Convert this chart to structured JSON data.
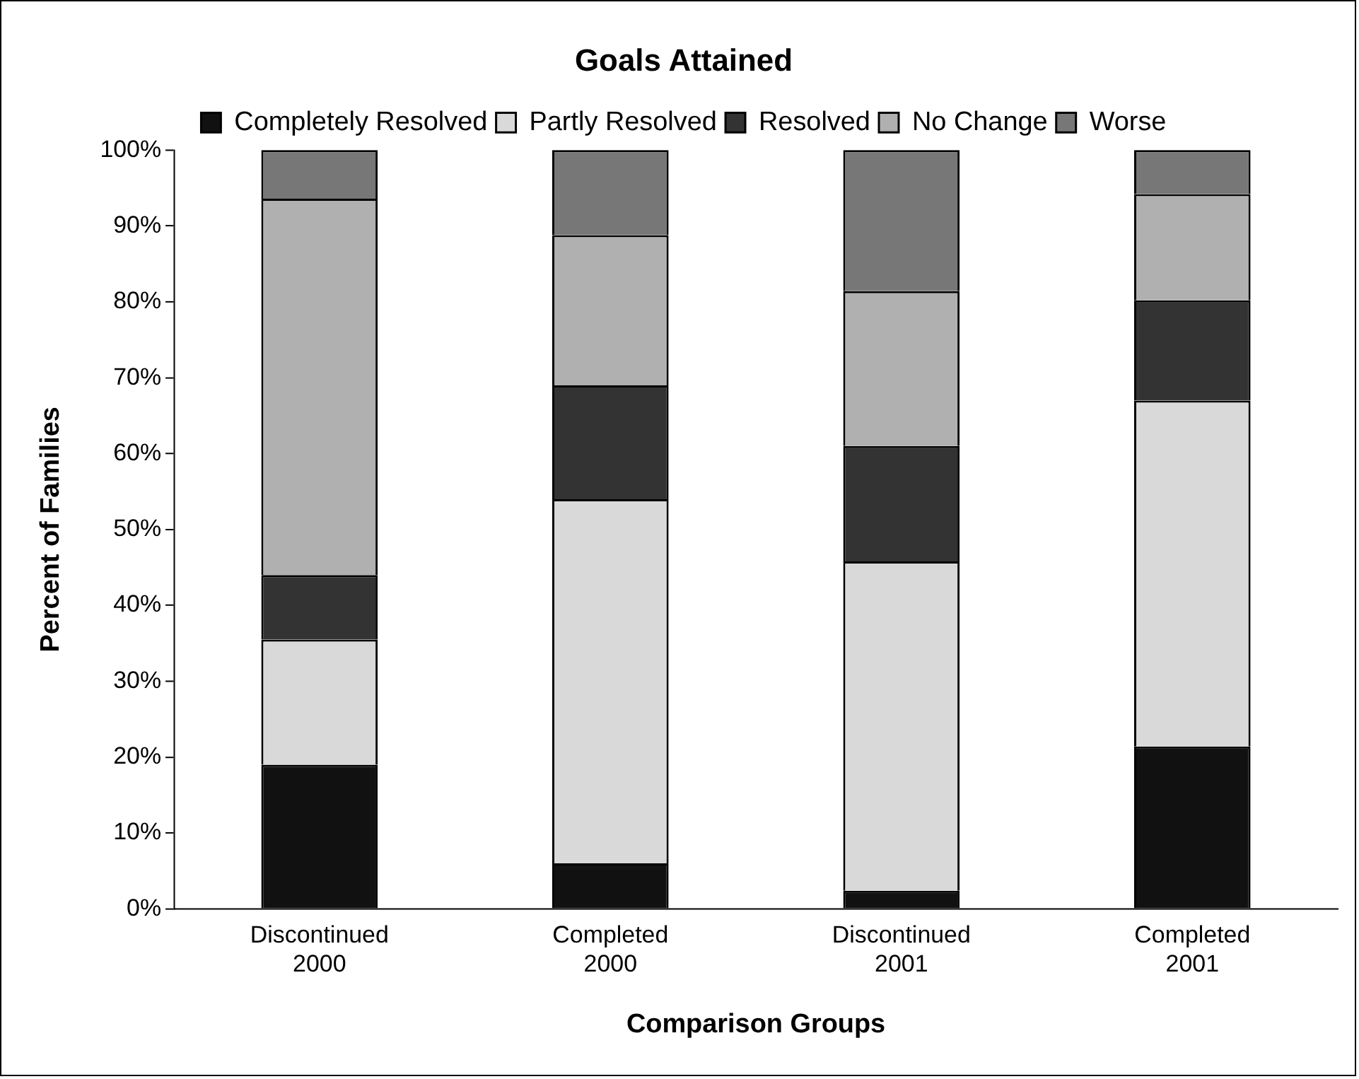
{
  "chart_data": {
    "type": "bar",
    "title": "Goals Attained",
    "xlabel": "Comparison Groups",
    "ylabel": "Percent of Families",
    "stacked": true,
    "legend": "top",
    "grid": false,
    "categories": [
      "Discontinued 2000",
      "Completed 2000",
      "Discontinued 2001",
      "Completed 2001"
    ],
    "series": [
      {
        "name": "Completely Resolved",
        "color": "#111111",
        "values": [
          19.0,
          6.0,
          2.4,
          21.4
        ]
      },
      {
        "name": "Partly Resolved",
        "color": "#d9d9d9",
        "values": [
          16.5,
          48.0,
          43.4,
          45.6
        ]
      },
      {
        "name": "Resolved",
        "color": "#333333",
        "values": [
          8.5,
          15.0,
          15.2,
          13.2
        ]
      },
      {
        "name": "No Change",
        "color": "#b0b0b0",
        "values": [
          49.6,
          19.8,
          20.4,
          14.0
        ]
      },
      {
        "name": "Worse",
        "color": "#777777",
        "values": [
          6.4,
          11.2,
          18.6,
          5.8
        ]
      }
    ],
    "ylim": [
      0,
      100
    ],
    "yticks": [
      {
        "value": 0,
        "label": "0%"
      },
      {
        "value": 10,
        "label": "10%"
      },
      {
        "value": 20,
        "label": "20%"
      },
      {
        "value": 30,
        "label": "30%"
      },
      {
        "value": 40,
        "label": "40%"
      },
      {
        "value": 50,
        "label": "50%"
      },
      {
        "value": 60,
        "label": "60%"
      },
      {
        "value": 70,
        "label": "70%"
      },
      {
        "value": 80,
        "label": "80%"
      },
      {
        "value": 90,
        "label": "90%"
      },
      {
        "value": 100,
        "label": "100%"
      }
    ]
  }
}
